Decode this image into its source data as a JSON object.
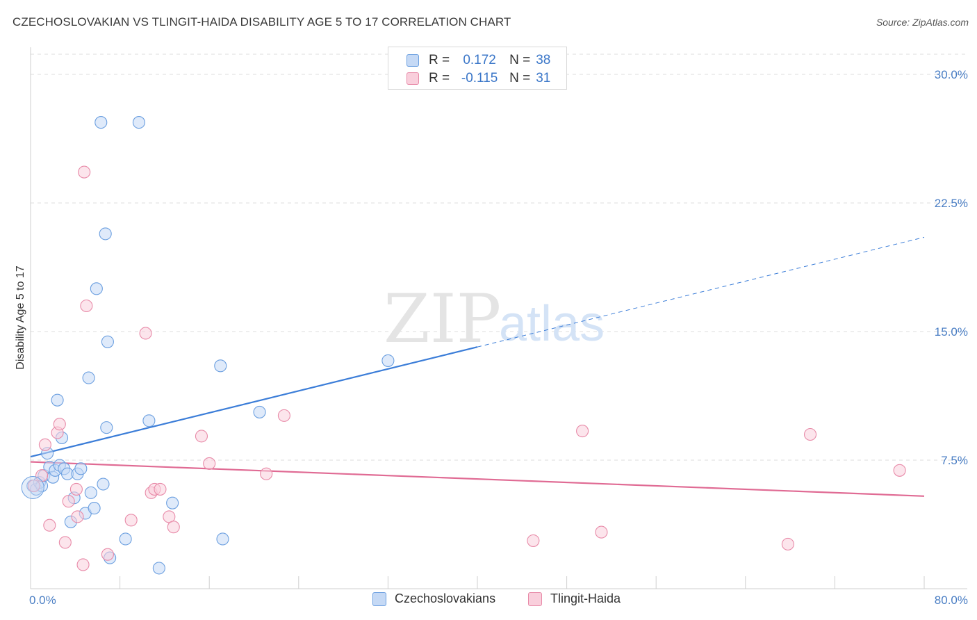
{
  "title": "CZECHOSLOVAKIAN VS TLINGIT-HAIDA DISABILITY AGE 5 TO 17 CORRELATION CHART",
  "source": "Source: ZipAtlas.com",
  "watermark": {
    "zip": "ZIP",
    "atlas": "atlas"
  },
  "legend": {
    "r_label": "R =",
    "n_label": "N =",
    "rows": [
      {
        "r": "0.172",
        "n": "38",
        "color": "#6b9fe0",
        "fill": "#c5d9f5"
      },
      {
        "r": "-0.115",
        "n": "31",
        "color": "#e88aa8",
        "fill": "#f9cfdc"
      }
    ]
  },
  "bottom_legend": [
    "Czechoslovakians",
    "Tlingit-Haida"
  ],
  "chart_data": {
    "type": "scatter",
    "title": "CZECHOSLOVAKIAN VS TLINGIT-HAIDA DISABILITY AGE 5 TO 17 CORRELATION CHART",
    "xlabel": "",
    "ylabel": "Disability Age 5 to 17",
    "xlim": [
      0,
      80
    ],
    "ylim": [
      0,
      31.5
    ],
    "x_tick_labels": [
      "0.0%",
      "80.0%"
    ],
    "y_ticks": [
      7.5,
      15.0,
      22.5,
      30.0
    ],
    "y_tick_labels": [
      "7.5%",
      "15.0%",
      "22.5%",
      "30.0%"
    ],
    "series": [
      {
        "name": "Czechoslovakians",
        "color": "#6b9fe0",
        "fill": "#c5d9f5",
        "r": 0.172,
        "n": 38,
        "points": [
          [
            0.2,
            6.0
          ],
          [
            0.5,
            5.8
          ],
          [
            0.8,
            6.2
          ],
          [
            1.0,
            6.0
          ],
          [
            1.2,
            6.6
          ],
          [
            1.5,
            7.9
          ],
          [
            1.7,
            7.1
          ],
          [
            2.0,
            6.5
          ],
          [
            2.2,
            6.9
          ],
          [
            2.4,
            11.0
          ],
          [
            2.6,
            7.2
          ],
          [
            2.8,
            8.8
          ],
          [
            3.0,
            7.0
          ],
          [
            3.3,
            6.7
          ],
          [
            3.6,
            3.9
          ],
          [
            3.9,
            5.3
          ],
          [
            4.2,
            6.7
          ],
          [
            4.5,
            7.0
          ],
          [
            4.9,
            4.4
          ],
          [
            5.2,
            12.3
          ],
          [
            5.4,
            5.6
          ],
          [
            5.7,
            4.7
          ],
          [
            5.9,
            17.5
          ],
          [
            6.3,
            27.2
          ],
          [
            6.5,
            6.1
          ],
          [
            6.7,
            20.7
          ],
          [
            6.8,
            9.4
          ],
          [
            6.9,
            14.4
          ],
          [
            7.1,
            1.8
          ],
          [
            8.5,
            2.9
          ],
          [
            9.7,
            27.2
          ],
          [
            10.6,
            9.8
          ],
          [
            11.5,
            1.2
          ],
          [
            12.7,
            5.0
          ],
          [
            17.0,
            13.0
          ],
          [
            17.2,
            2.9
          ],
          [
            20.5,
            10.3
          ],
          [
            32.0,
            13.3
          ]
        ],
        "trend": {
          "x0": 0,
          "y0": 7.7,
          "x1": 40,
          "y1": 14.1,
          "x_dash_end": 80,
          "y_dash_end": 20.5
        }
      },
      {
        "name": "Tlingit-Haida",
        "color": "#e88aa8",
        "fill": "#f9cfdc",
        "r": -0.115,
        "n": 31,
        "points": [
          [
            0.3,
            6.0
          ],
          [
            1.0,
            6.6
          ],
          [
            1.3,
            8.4
          ],
          [
            1.7,
            3.7
          ],
          [
            2.4,
            9.1
          ],
          [
            2.6,
            9.6
          ],
          [
            3.1,
            2.7
          ],
          [
            3.4,
            5.1
          ],
          [
            4.1,
            5.8
          ],
          [
            4.2,
            4.2
          ],
          [
            4.7,
            1.4
          ],
          [
            4.8,
            24.3
          ],
          [
            5.0,
            16.5
          ],
          [
            6.9,
            2.0
          ],
          [
            9.0,
            4.0
          ],
          [
            10.3,
            14.9
          ],
          [
            10.8,
            5.6
          ],
          [
            11.1,
            5.8
          ],
          [
            11.6,
            5.8
          ],
          [
            12.4,
            4.2
          ],
          [
            12.8,
            3.6
          ],
          [
            15.3,
            8.9
          ],
          [
            16.0,
            7.3
          ],
          [
            21.1,
            6.7
          ],
          [
            22.7,
            10.1
          ],
          [
            45.0,
            2.8
          ],
          [
            49.4,
            9.2
          ],
          [
            51.1,
            3.3
          ],
          [
            67.8,
            2.6
          ],
          [
            69.8,
            9.0
          ],
          [
            77.8,
            6.9
          ]
        ],
        "trend": {
          "x0": 0,
          "y0": 7.4,
          "x1": 80,
          "y1": 5.4
        }
      }
    ]
  }
}
